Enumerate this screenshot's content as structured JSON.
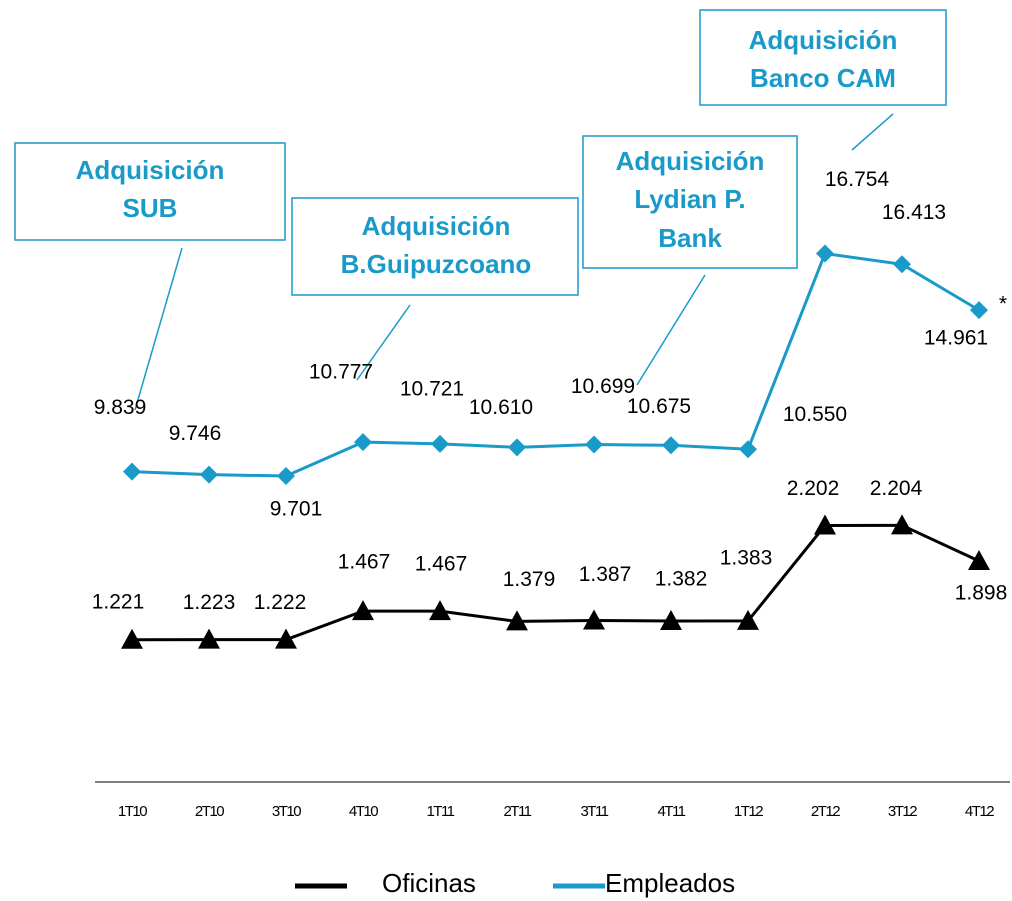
{
  "chart_data": {
    "type": "line",
    "categories": [
      "1T10",
      "2T10",
      "3T10",
      "4T10",
      "1T11",
      "2T11",
      "3T11",
      "4T11",
      "1T12",
      "2T12",
      "3T12",
      "4T12"
    ],
    "series": [
      {
        "name": "Oficinas",
        "color": "#000000",
        "marker": "triangle",
        "axis": "y2",
        "values": [
          1221,
          1223,
          1222,
          1467,
          1467,
          1379,
          1387,
          1382,
          1383,
          2202,
          2204,
          1898
        ],
        "value_labels": [
          "1.221",
          "1.223",
          "1.222",
          "1.467",
          "1.467",
          "1.379",
          "1.387",
          "1.382",
          "1.383",
          "2.202",
          "2.204",
          "1.898"
        ]
      },
      {
        "name": "Empleados",
        "color": "#1a9ac9",
        "marker": "diamond",
        "values": [
          9839,
          9746,
          9701,
          10777,
          10721,
          10610,
          10699,
          10675,
          10550,
          16754,
          16413,
          14961
        ],
        "value_labels": [
          "9.839",
          "9.746",
          "9.701",
          "10.777",
          "10.721",
          "10.610",
          "10.699",
          "10.675",
          "10.550",
          "16.754",
          "16.413",
          "14.961"
        ]
      }
    ],
    "ylim": [
      0,
      24000
    ],
    "y2lim": [
      0,
      6500
    ],
    "annotations": [
      {
        "lines": [
          "Adquisición",
          "SUB"
        ]
      },
      {
        "lines": [
          "Adquisición",
          "B.Guipuzcoano"
        ]
      },
      {
        "lines": [
          "Adquisición",
          "Lydian P.",
          "Bank"
        ]
      },
      {
        "lines": [
          "Adquisición",
          "Banco CAM"
        ]
      }
    ],
    "footnote_mark": "*",
    "legend": "bottom"
  }
}
